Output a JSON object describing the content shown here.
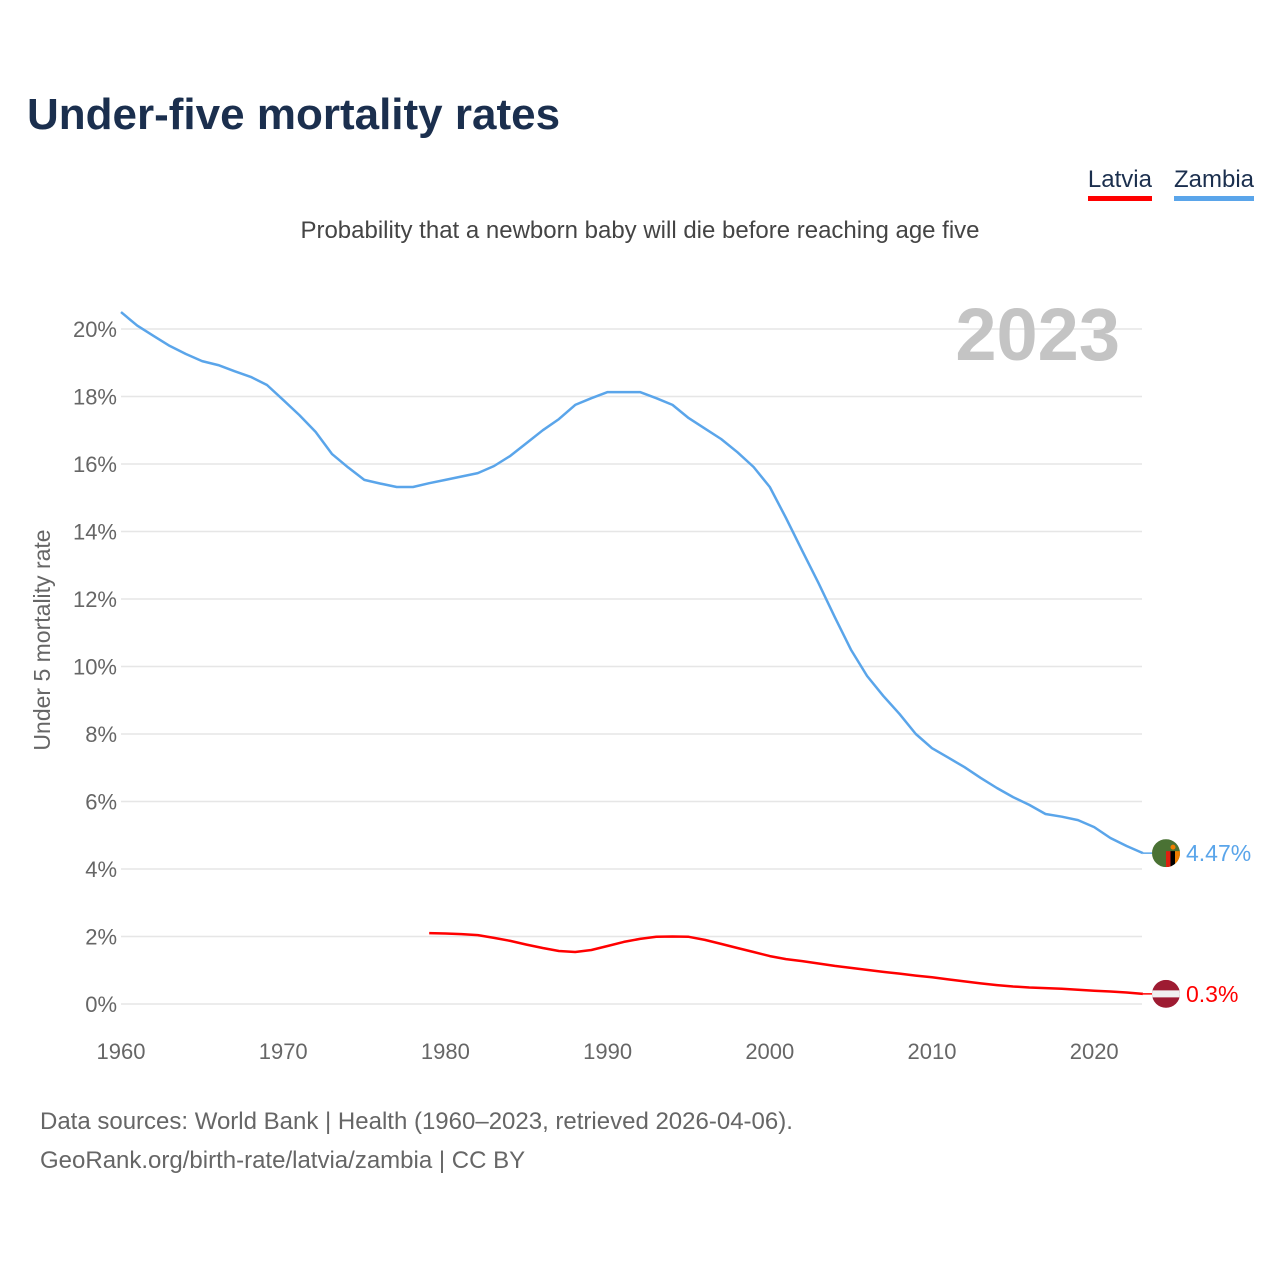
{
  "title": "Under-five mortality rates",
  "subtitle": "Probability that a newborn baby will die before reaching age five",
  "colors": {
    "latvia": "#ff0000",
    "zambia": "#5aa5ea"
  },
  "footer": {
    "line1": "Data sources: World Bank | Health (1960–2023, retrieved 2026-04-06).",
    "line2": "GeoRank.org/birth-rate/latvia/zambia | CC BY"
  },
  "chart_data": {
    "type": "line",
    "title": "Under-five mortality rates",
    "year_label": "2023",
    "xlabel": "",
    "ylabel": "Under 5 mortality rate",
    "xlim": [
      1960,
      2023
    ],
    "ylim": [
      0,
      20
    ],
    "grid": true,
    "legend_position": "top-right",
    "x_ticks": [
      "1960",
      "1970",
      "1980",
      "1990",
      "2000",
      "2010",
      "2020"
    ],
    "y_ticks": [
      "0%",
      "2%",
      "4%",
      "6%",
      "8%",
      "10%",
      "12%",
      "14%",
      "16%",
      "18%",
      "20%"
    ],
    "series": [
      {
        "name": "Latvia",
        "start_year": 1979,
        "end_label": "0.3%",
        "flag": "latvia-flag",
        "values": [
          2.1,
          2.09,
          2.07,
          2.04,
          1.96,
          1.87,
          1.76,
          1.66,
          1.57,
          1.54,
          1.6,
          1.72,
          1.84,
          1.93,
          1.99,
          2.0,
          1.99,
          1.9,
          1.78,
          1.66,
          1.54,
          1.42,
          1.33,
          1.27,
          1.2,
          1.13,
          1.07,
          1.01,
          0.95,
          0.9,
          0.84,
          0.79,
          0.73,
          0.67,
          0.61,
          0.56,
          0.52,
          0.49,
          0.47,
          0.45,
          0.42,
          0.39,
          0.37,
          0.34,
          0.3
        ]
      },
      {
        "name": "Zambia",
        "start_year": 1960,
        "end_label": "4.47%",
        "flag": "zambia-flag",
        "values": [
          20.5,
          20.1,
          19.8,
          19.5,
          19.26,
          19.05,
          18.93,
          18.75,
          18.58,
          18.34,
          17.9,
          17.45,
          16.95,
          16.3,
          15.9,
          15.53,
          15.42,
          15.32,
          15.32,
          15.43,
          15.53,
          15.63,
          15.73,
          15.94,
          16.24,
          16.62,
          17.0,
          17.33,
          17.75,
          17.95,
          18.13,
          18.13,
          18.13,
          17.95,
          17.75,
          17.36,
          17.05,
          16.74,
          16.35,
          15.91,
          15.32,
          14.4,
          13.43,
          12.47,
          11.47,
          10.5,
          9.72,
          9.13,
          8.59,
          8.0,
          7.58,
          7.3,
          7.02,
          6.7,
          6.4,
          6.13,
          5.9,
          5.63,
          5.55,
          5.45,
          5.24,
          4.92,
          4.68,
          4.47
        ]
      }
    ]
  }
}
